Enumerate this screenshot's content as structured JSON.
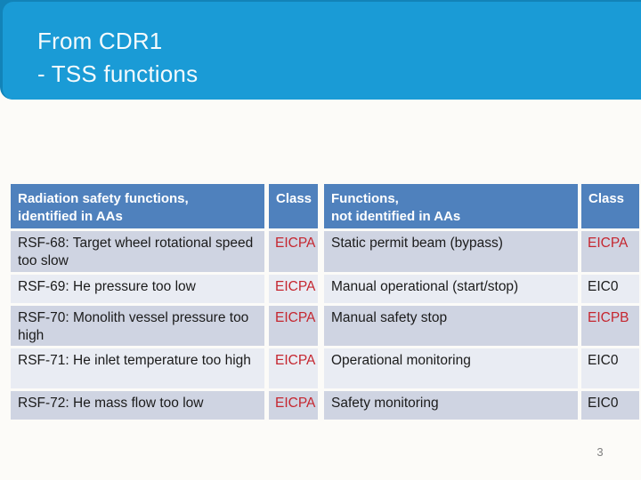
{
  "colors": {
    "slide_bg": "#FCFBF8",
    "banner_blue": "#1A9BD6",
    "banner_edge_blue": "#1283B8",
    "table_header_blue": "#4F81BD",
    "row_band_dark": "#CFD4E2",
    "row_band_light": "#E9ECF3",
    "class_red": "#C5262F",
    "text_dark": "#1B1B1B",
    "page_number_gray": "#808080"
  },
  "title": {
    "line1": "From CDR1",
    "line2": "- TSS functions"
  },
  "page_number": "3",
  "table": {
    "columns": [
      {
        "label": "Radiation safety functions,\nidentified in AAs"
      },
      {
        "label": "Class"
      },
      {
        "label": "Functions,\nnot identified in AAs"
      },
      {
        "label": "Class"
      }
    ],
    "rows": [
      {
        "identified_function": "RSF-68: Target wheel rotational speed too slow",
        "identified_class": "EICPA",
        "identified_class_style": "red",
        "not_identified_function": "Static permit beam (bypass)",
        "not_identified_class": "EICPA",
        "not_identified_class_style": "red"
      },
      {
        "identified_function": "RSF-69: He pressure too low",
        "identified_class": "EICPA",
        "identified_class_style": "red",
        "not_identified_function": "Manual operational (start/stop)",
        "not_identified_class": "EIC0",
        "not_identified_class_style": "dark"
      },
      {
        "identified_function": "RSF-70: Monolith vessel pressure too high",
        "identified_class": "EICPA",
        "identified_class_style": "red",
        "not_identified_function": "Manual safety stop",
        "not_identified_class": "EICPB",
        "not_identified_class_style": "red"
      },
      {
        "identified_function": "RSF-71: He inlet temperature too high",
        "identified_class": "EICPA",
        "identified_class_style": "red",
        "not_identified_function": "Operational monitoring",
        "not_identified_class": "EIC0",
        "not_identified_class_style": "dark"
      },
      {
        "identified_function": "RSF-72: He mass flow too low",
        "identified_class": "EICPA",
        "identified_class_style": "red",
        "not_identified_function": "Safety monitoring",
        "not_identified_class": "EIC0",
        "not_identified_class_style": "dark"
      }
    ]
  }
}
